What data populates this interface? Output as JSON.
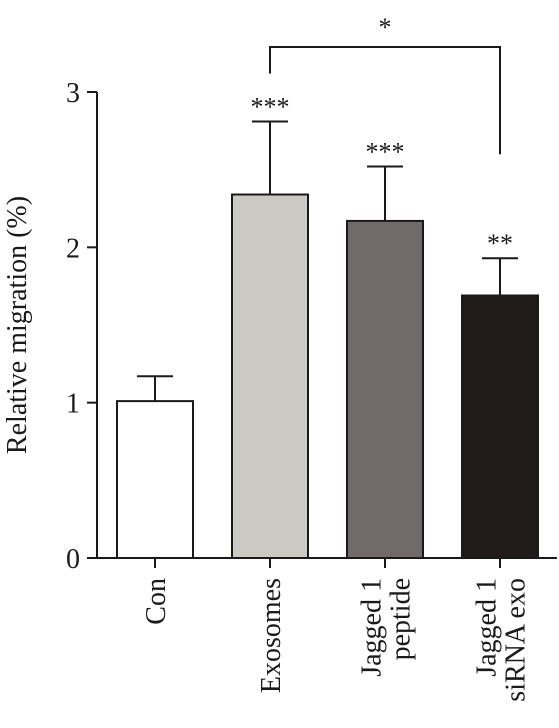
{
  "chart_data": {
    "type": "bar",
    "categories": [
      [
        "Con"
      ],
      [
        "Exosomes"
      ],
      [
        "Jagged 1",
        "peptide"
      ],
      [
        "Jagged 1",
        "siRNA exo"
      ]
    ],
    "values": [
      1.01,
      2.34,
      2.17,
      1.69
    ],
    "errors": [
      0.16,
      0.47,
      0.35,
      0.24
    ],
    "colors": [
      "#ffffff",
      "#cbc9c3",
      "#716a6a",
      "#211b1c"
    ],
    "significance": [
      "",
      "***",
      "***",
      "**"
    ],
    "comparison": {
      "from": 1,
      "to": 3,
      "label": "*"
    },
    "ylabel": "Relative migration (%)",
    "ylim": [
      0,
      3
    ],
    "yticks": [
      0,
      1,
      2,
      3
    ],
    "xlabel": "",
    "title": "",
    "grid": false
  }
}
